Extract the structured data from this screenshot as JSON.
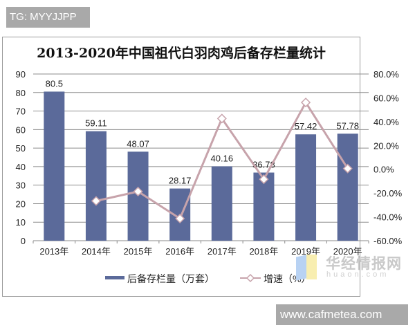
{
  "watermarks": {
    "top_tag": "TG: MYYJJPP",
    "bottom_url": "www.cafmetea.com",
    "brand_cn": "华经情报网",
    "brand_en": "huaon.com"
  },
  "chart_data": {
    "type": "bar",
    "title": "2013-2020年中国祖代白羽肉鸡后备存栏量统计",
    "categories": [
      "2013年",
      "2014年",
      "2015年",
      "2016年",
      "2017年",
      "2018年",
      "2019年",
      "2020年"
    ],
    "series": [
      {
        "name": "后备存栏量（万套）",
        "type": "bar",
        "axis": "left",
        "color": "#5b6a9a",
        "values": [
          80.5,
          59.11,
          48.07,
          28.17,
          40.16,
          36.78,
          57.42,
          57.78
        ],
        "labels": [
          "80.5",
          "59.11",
          "48.07",
          "28.17",
          "40.16",
          "36.78",
          "57.42",
          "57.78"
        ]
      },
      {
        "name": "增速（%）",
        "type": "line",
        "axis": "right",
        "color": "#c7a3ab",
        "marker": "diamond",
        "values": [
          null,
          -26.6,
          -18.7,
          -41.4,
          42.6,
          -8.4,
          56.1,
          0.6
        ]
      }
    ],
    "y_left": {
      "min": 0,
      "max": 90,
      "step": 10,
      "ticks": [
        "0",
        "10",
        "20",
        "30",
        "40",
        "50",
        "60",
        "70",
        "80",
        "90"
      ]
    },
    "y_right": {
      "min": -60,
      "max": 80,
      "step": 20,
      "ticks": [
        "-60.0%",
        "-40.0%",
        "-20.0%",
        "0.0%",
        "20.0%",
        "40.0%",
        "60.0%",
        "80.0%"
      ]
    },
    "xlabel": "",
    "ylabel": "",
    "grid": true,
    "legend_position": "bottom"
  },
  "legend": {
    "bar_label": "后备存栏量（万套）",
    "line_label": "增速（%）"
  }
}
